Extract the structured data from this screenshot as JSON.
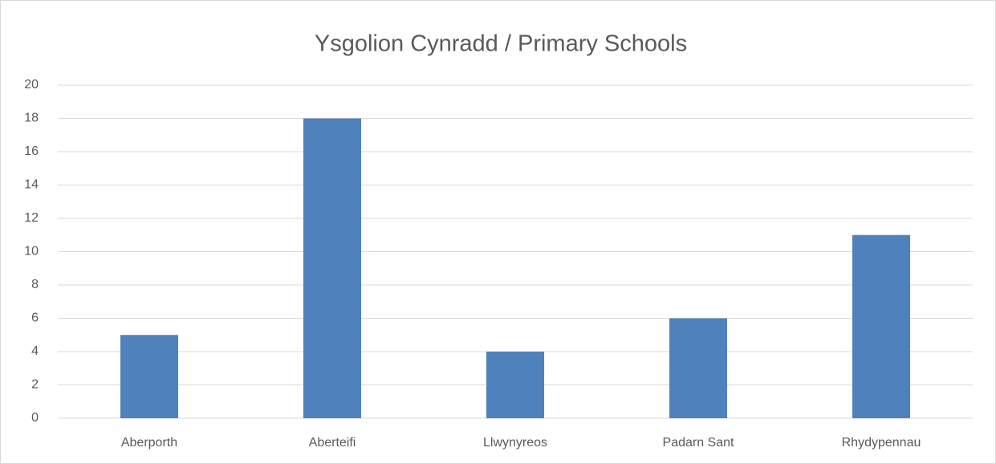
{
  "chart_data": {
    "type": "bar",
    "title": "Ysgolion Cynradd / Primary Schools",
    "categories": [
      "Aberporth",
      "Aberteifi",
      "Llwynyreos",
      "Padarn Sant",
      "Rhydypennau"
    ],
    "values": [
      5,
      18,
      4,
      6,
      11
    ],
    "color": "#4f81bd",
    "ylim": [
      0,
      20
    ],
    "yticks": [
      0,
      2,
      4,
      6,
      8,
      10,
      12,
      14,
      16,
      18,
      20
    ],
    "grid": true
  }
}
